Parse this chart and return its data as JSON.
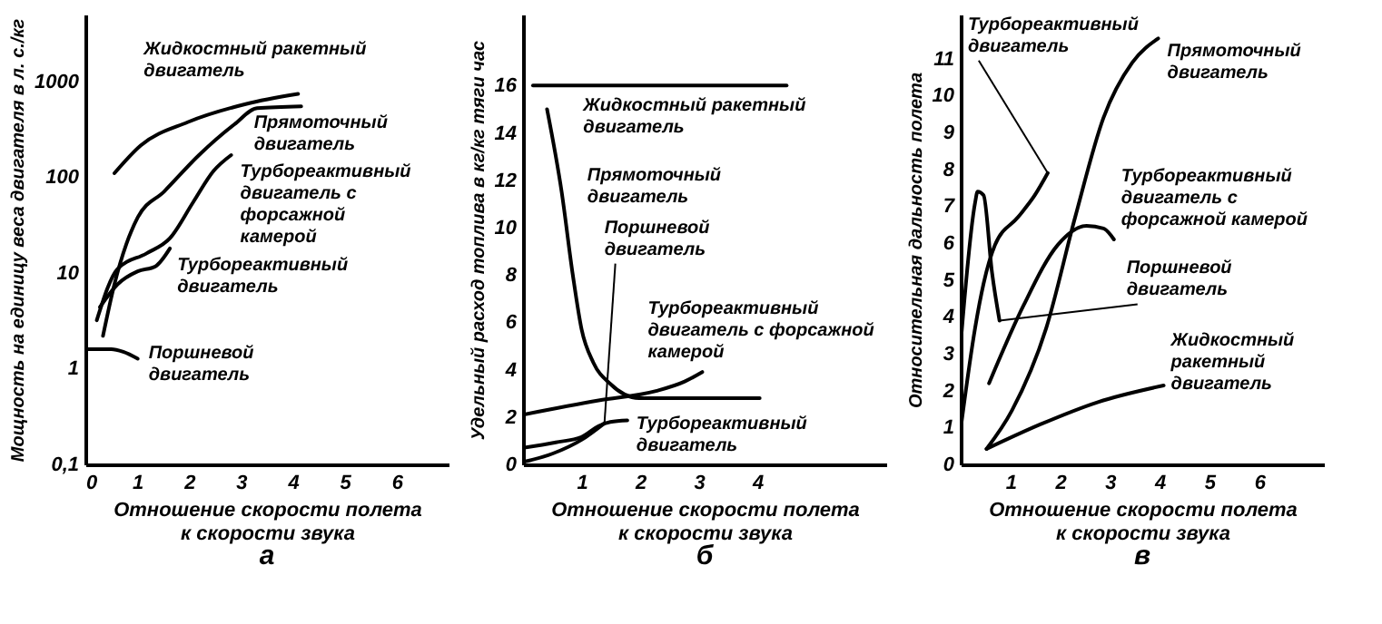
{
  "chart_data": [
    {
      "type": "line",
      "xlabel": "Отношение скорости полета к скорости звука",
      "ylabel": "Мощность на единицу веса двигателя в л. с./кг",
      "annotations": [
        "а"
      ],
      "log": "y",
      "xlim": [
        0,
        7
      ],
      "xticks": [
        0,
        1,
        2,
        3,
        4,
        5,
        6
      ],
      "ylim": [
        0.1,
        5000
      ],
      "yticks": [
        {
          "value": 0.1,
          "label": "0,1"
        },
        1,
        10,
        100,
        1000
      ],
      "series": [
        {
          "name": "Жидкостный ракетный двигатель",
          "color": "#000000",
          "x": [
            0.56,
            1.07,
            1.97,
            3.09,
            4.1
          ],
          "values": [
            110,
            215,
            375,
            580,
            740
          ]
        },
        {
          "name": "Прямоточный двигатель",
          "color": "#000000",
          "x": [
            0.34,
            0.56,
            0.79,
            1.01,
            1.52,
            2.19,
            2.87,
            3.31,
            4.16
          ],
          "values": [
            2.2,
            7.6,
            20,
            38,
            71,
            170,
            355,
            525,
            550
          ]
        },
        {
          "name": "Турбореактивный двигатель с форсажной камерой",
          "color": "#000000",
          "x": [
            0.22,
            0.62,
            1.18,
            1.63,
            2.08,
            2.47,
            2.81
          ],
          "values": [
            3.2,
            11,
            16,
            23,
            55,
            116,
            170
          ]
        },
        {
          "name": "Турбореактивный двигатель",
          "color": "#000000",
          "x": [
            0.28,
            0.62,
            1.01,
            1.35,
            1.63
          ],
          "values": [
            4.4,
            7.6,
            10.4,
            11.7,
            18
          ]
        },
        {
          "name": "Поршневой двигатель",
          "color": "#000000",
          "x": [
            0.06,
            0.5,
            0.73,
            1.01
          ],
          "values": [
            1.6,
            1.6,
            1.5,
            1.27
          ]
        }
      ]
    },
    {
      "type": "line",
      "xlabel": "Отношение скорости полета к скорости звука",
      "ylabel": "Удельный расход топлива в кг/кг тяги час",
      "annotations": [
        "б"
      ],
      "xlim": [
        0,
        6.2
      ],
      "xticks": [
        1,
        2,
        3,
        4
      ],
      "ylim": [
        0,
        19
      ],
      "yticks": [
        0,
        2,
        4,
        6,
        8,
        10,
        12,
        14,
        16
      ],
      "series": [
        {
          "name": "Жидкостный ракетный двигатель",
          "color": "#000000",
          "x": [
            0.17,
            4.5
          ],
          "values": [
            16,
            16
          ]
        },
        {
          "name": "Прямоточный двигатель",
          "color": "#000000",
          "x": [
            0.41,
            0.66,
            0.85,
            1.0,
            1.2,
            1.49,
            1.98,
            2.76,
            4.04
          ],
          "values": [
            15,
            11.5,
            8,
            5.7,
            4.3,
            3.4,
            2.8,
            2.8,
            2.8
          ]
        },
        {
          "name": "Поршневой двигатель",
          "color": "#000000",
          "x": [
            0,
            0.51,
            1.0,
            1.39
          ],
          "values": [
            0.1,
            0.46,
            1.04,
            1.74
          ]
        },
        {
          "name": "Турбореактивный двигатель с форсажной камерой",
          "color": "#000000",
          "x": [
            0,
            1.29,
            2.27,
            2.76,
            3.06
          ],
          "values": [
            2.1,
            2.7,
            3.1,
            3.5,
            3.9
          ]
        },
        {
          "name": "Турбореактивный двигатель",
          "color": "#000000",
          "x": [
            0,
            0.56,
            1.0,
            1.29,
            1.49,
            1.78
          ],
          "values": [
            0.7,
            0.93,
            1.16,
            1.62,
            1.79,
            1.86
          ]
        }
      ]
    },
    {
      "type": "line",
      "xlabel": "Отношение скорости полета к скорости звука",
      "ylabel": "Относительная дальность полета",
      "annotations": [
        "в"
      ],
      "xlim": [
        0,
        7.3
      ],
      "xticks": [
        1,
        2,
        3,
        4,
        5,
        6
      ],
      "ylim": [
        0,
        12.2
      ],
      "yticks": [
        0,
        1,
        2,
        3,
        4,
        5,
        6,
        7,
        8,
        9,
        10,
        11
      ],
      "series": [
        {
          "name": "Турбореактивный двигатель",
          "color": "#000000",
          "x": [
            0.02,
            0.29,
            0.46,
            0.69,
            1.15,
            1.49,
            1.75
          ],
          "values": [
            1.17,
            3.7,
            4.9,
            5.95,
            6.7,
            7.3,
            7.9
          ]
        },
        {
          "name": "Прямоточный двигатель",
          "color": "#000000",
          "x": [
            0.52,
            1.03,
            1.72,
            2.3,
            2.87,
            3.45,
            3.97
          ],
          "values": [
            0.42,
            1.46,
            3.7,
            6.7,
            9.4,
            10.9,
            11.55
          ]
        },
        {
          "name": "Турбореактивный двигатель с форсажной камерой",
          "color": "#000000",
          "x": [
            0.57,
            1.26,
            1.95,
            2.53,
            2.87,
            3.08
          ],
          "values": [
            2.2,
            4.3,
            5.95,
            6.47,
            6.4,
            6.1
          ]
        },
        {
          "name": "Поршневой двигатель",
          "color": "#000000",
          "x": [
            0.02,
            0.29,
            0.34,
            0.46,
            0.63,
            0.78
          ],
          "values": [
            3.6,
            7.1,
            7.4,
            7.3,
            5.2,
            3.9
          ]
        },
        {
          "name": "Жидкостный ракетный двигатель",
          "color": "#000000",
          "x": [
            0.52,
            1.61,
            2.76,
            4.08
          ],
          "values": [
            0.42,
            1.09,
            1.69,
            2.14
          ]
        }
      ]
    }
  ]
}
